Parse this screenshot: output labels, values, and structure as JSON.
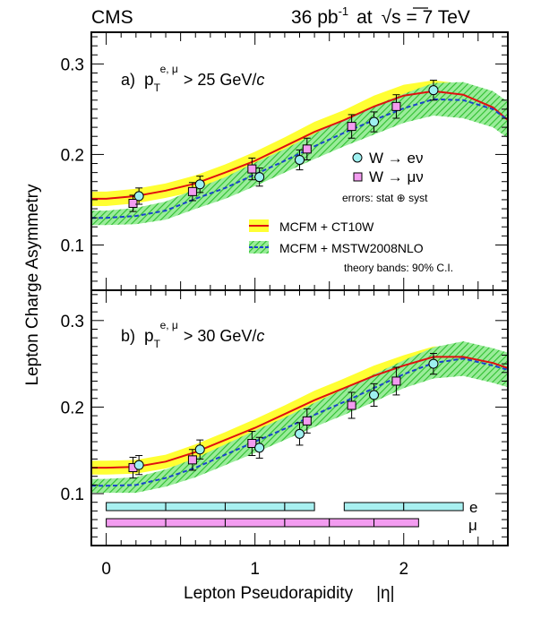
{
  "header": {
    "left": "CMS",
    "lumi_value": "36 pb",
    "lumi_exp": "-1",
    "at_word": "at",
    "sqrt_sym": "√",
    "energy": "s = 7 TeV"
  },
  "axes": {
    "ylabel": "Lepton Charge Asymmetry",
    "xlabel": "Lepton Pseudorapidity",
    "xlabel_eta": "|η|"
  },
  "legend": {
    "w_e": "W → eν",
    "w_mu": "W → μν",
    "errors_note": "errors: stat ⊕ syst",
    "ct10w": "MCFM + CT10W",
    "mstw": "MCFM + MSTW2008NLO",
    "theory_note": "theory bands: 90% C.I."
  },
  "bin_labels": {
    "electron": "e",
    "muon": "μ"
  },
  "colors": {
    "ct10_band": "#ffff33",
    "ct10_line": "#e01010",
    "mstw_band": "#55dd55",
    "mstw_line": "#1a44cc",
    "electron_marker": "#9ef0f0",
    "muon_marker": "#f39cf0",
    "electron_bins": "#a8f0f0",
    "muon_bins": "#f39cf0"
  },
  "chart_data": [
    {
      "type": "line",
      "panel": "a",
      "label_prefix": "a)",
      "label_sym": "p",
      "label_sub": "T",
      "label_sup": "e, μ",
      "label_cut": "> 25 GeV/",
      "label_c": "c",
      "xlim": [
        -0.1,
        2.7
      ],
      "ylim": [
        0.05,
        0.335
      ],
      "xticks": [
        0,
        1,
        2
      ],
      "xtick_labels": [
        "0",
        "1",
        "2"
      ],
      "yticks": [
        0.1,
        0.2,
        0.3
      ],
      "ytick_labels": [
        "0.1",
        "0.2",
        "0.3"
      ],
      "ct10_x": [
        -0.1,
        0.0,
        0.2,
        0.4,
        0.6,
        0.8,
        1.0,
        1.2,
        1.4,
        1.6,
        1.8,
        2.0,
        2.2,
        2.4,
        2.6,
        2.7
      ],
      "ct10_y": [
        0.151,
        0.151,
        0.154,
        0.16,
        0.168,
        0.18,
        0.193,
        0.209,
        0.225,
        0.238,
        0.253,
        0.265,
        0.27,
        0.266,
        0.252,
        0.238
      ],
      "ct10_halfwidth": [
        0.008,
        0.008,
        0.008,
        0.008,
        0.009,
        0.009,
        0.01,
        0.01,
        0.011,
        0.011,
        0.012,
        0.012,
        0.012,
        0.012,
        0.012,
        0.012
      ],
      "mstw_x": [
        -0.1,
        0.0,
        0.2,
        0.4,
        0.6,
        0.8,
        1.0,
        1.2,
        1.4,
        1.6,
        1.8,
        2.0,
        2.2,
        2.4,
        2.6,
        2.7
      ],
      "mstw_y": [
        0.13,
        0.13,
        0.132,
        0.138,
        0.151,
        0.163,
        0.178,
        0.193,
        0.209,
        0.224,
        0.238,
        0.251,
        0.261,
        0.26,
        0.25,
        0.238
      ],
      "mstw_halfwidth": [
        0.008,
        0.008,
        0.009,
        0.01,
        0.011,
        0.012,
        0.013,
        0.013,
        0.014,
        0.015,
        0.016,
        0.016,
        0.018,
        0.02,
        0.02,
        0.02
      ],
      "electron": [
        {
          "x": 0.22,
          "y": 0.154,
          "err": 0.009
        },
        {
          "x": 0.63,
          "y": 0.167,
          "err": 0.009
        },
        {
          "x": 1.03,
          "y": 0.175,
          "err": 0.01
        },
        {
          "x": 1.3,
          "y": 0.194,
          "err": 0.011
        },
        {
          "x": 1.8,
          "y": 0.236,
          "err": 0.011
        },
        {
          "x": 2.2,
          "y": 0.271,
          "err": 0.011
        }
      ],
      "muon": [
        {
          "x": 0.18,
          "y": 0.146,
          "err": 0.009
        },
        {
          "x": 0.58,
          "y": 0.159,
          "err": 0.01
        },
        {
          "x": 0.98,
          "y": 0.184,
          "err": 0.012
        },
        {
          "x": 1.35,
          "y": 0.206,
          "err": 0.012
        },
        {
          "x": 1.65,
          "y": 0.231,
          "err": 0.013
        },
        {
          "x": 1.95,
          "y": 0.253,
          "err": 0.013
        }
      ]
    },
    {
      "type": "line",
      "panel": "b",
      "label_prefix": "b)",
      "label_sym": "p",
      "label_sub": "T",
      "label_sup": "e, μ",
      "label_cut": "> 30 GeV/",
      "label_c": "c",
      "xlim": [
        -0.1,
        2.7
      ],
      "ylim": [
        0.04,
        0.335
      ],
      "xticks": [
        0,
        1,
        2
      ],
      "xtick_labels": [
        "0",
        "1",
        "2"
      ],
      "yticks": [
        0.1,
        0.2,
        0.3
      ],
      "ytick_labels": [
        "0.1",
        "0.2",
        "0.3"
      ],
      "ct10_x": [
        -0.1,
        0.0,
        0.2,
        0.4,
        0.6,
        0.8,
        1.0,
        1.2,
        1.4,
        1.6,
        1.8,
        2.0,
        2.2,
        2.4,
        2.6,
        2.7
      ],
      "ct10_y": [
        0.13,
        0.13,
        0.131,
        0.137,
        0.148,
        0.162,
        0.176,
        0.192,
        0.208,
        0.222,
        0.236,
        0.248,
        0.258,
        0.258,
        0.251,
        0.245
      ],
      "ct10_halfwidth": [
        0.008,
        0.008,
        0.008,
        0.008,
        0.009,
        0.009,
        0.01,
        0.01,
        0.011,
        0.011,
        0.012,
        0.012,
        0.012,
        0.012,
        0.012,
        0.012
      ],
      "mstw_x": [
        -0.1,
        0.0,
        0.2,
        0.4,
        0.6,
        0.8,
        1.0,
        1.2,
        1.4,
        1.6,
        1.8,
        2.0,
        2.2,
        2.4,
        2.6,
        2.7
      ],
      "mstw_y": [
        0.109,
        0.109,
        0.11,
        0.118,
        0.13,
        0.145,
        0.16,
        0.175,
        0.191,
        0.206,
        0.222,
        0.238,
        0.251,
        0.256,
        0.248,
        0.243
      ],
      "mstw_halfwidth": [
        0.008,
        0.008,
        0.009,
        0.01,
        0.011,
        0.012,
        0.013,
        0.013,
        0.014,
        0.015,
        0.016,
        0.016,
        0.018,
        0.02,
        0.02,
        0.02
      ],
      "electron": [
        {
          "x": 0.22,
          "y": 0.133,
          "err": 0.011
        },
        {
          "x": 0.63,
          "y": 0.151,
          "err": 0.011
        },
        {
          "x": 1.03,
          "y": 0.153,
          "err": 0.012
        },
        {
          "x": 1.3,
          "y": 0.169,
          "err": 0.013
        },
        {
          "x": 1.8,
          "y": 0.214,
          "err": 0.013
        },
        {
          "x": 2.2,
          "y": 0.25,
          "err": 0.012
        }
      ],
      "muon": [
        {
          "x": 0.18,
          "y": 0.13,
          "err": 0.012
        },
        {
          "x": 0.58,
          "y": 0.139,
          "err": 0.012
        },
        {
          "x": 0.98,
          "y": 0.158,
          "err": 0.014
        },
        {
          "x": 1.35,
          "y": 0.184,
          "err": 0.014
        },
        {
          "x": 1.65,
          "y": 0.202,
          "err": 0.015
        },
        {
          "x": 1.95,
          "y": 0.23,
          "err": 0.016
        }
      ],
      "electron_bin_edges": [
        0.0,
        0.4,
        0.8,
        1.2,
        1.4,
        1.6,
        2.0,
        2.4
      ],
      "muon_bin_edges": [
        0.0,
        0.4,
        0.8,
        1.2,
        1.5,
        1.8,
        2.1
      ]
    }
  ]
}
